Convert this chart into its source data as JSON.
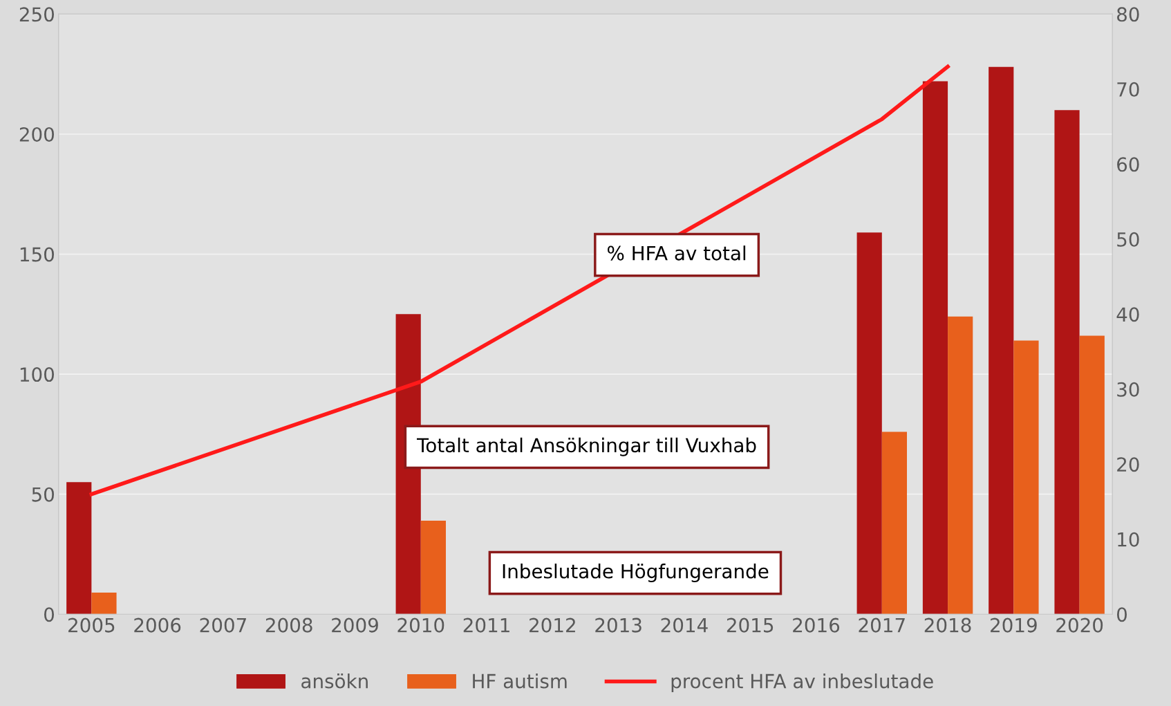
{
  "chart_data": {
    "type": "bar",
    "categories": [
      "2005",
      "2006",
      "2007",
      "2008",
      "2009",
      "2010",
      "2011",
      "2012",
      "2013",
      "2014",
      "2015",
      "2016",
      "2017",
      "2018",
      "2019",
      "2020"
    ],
    "series": [
      {
        "name": "ansökn",
        "color": "#b01515",
        "values": [
          55,
          null,
          null,
          null,
          null,
          125,
          null,
          null,
          null,
          null,
          null,
          null,
          159,
          222,
          228,
          210
        ]
      },
      {
        "name": "HF autism",
        "color": "#e8601c",
        "values": [
          9,
          null,
          null,
          null,
          null,
          39,
          null,
          null,
          null,
          null,
          null,
          null,
          76,
          124,
          114,
          116
        ]
      },
      {
        "name": "procent HFA av inbeslutade",
        "type": "line",
        "axis": "y2",
        "color": "#ff1a1a",
        "values": [
          16,
          null,
          null,
          null,
          null,
          31,
          null,
          null,
          null,
          null,
          null,
          null,
          66,
          73,
          null,
          null
        ]
      }
    ],
    "ylim": [
      0,
      250
    ],
    "yticks": [
      0,
      50,
      100,
      150,
      200,
      250
    ],
    "y2lim": [
      0,
      80
    ],
    "y2ticks": [
      0,
      10,
      20,
      30,
      40,
      50,
      60,
      70,
      80
    ],
    "grid": "y",
    "legend": "bottom",
    "marker": "none",
    "line_style": "solid",
    "annotations": [
      "% HFA av total",
      "Totalt antal Ansökningar till Vuxhab",
      "Inbeslutade Högfungerande"
    ]
  }
}
